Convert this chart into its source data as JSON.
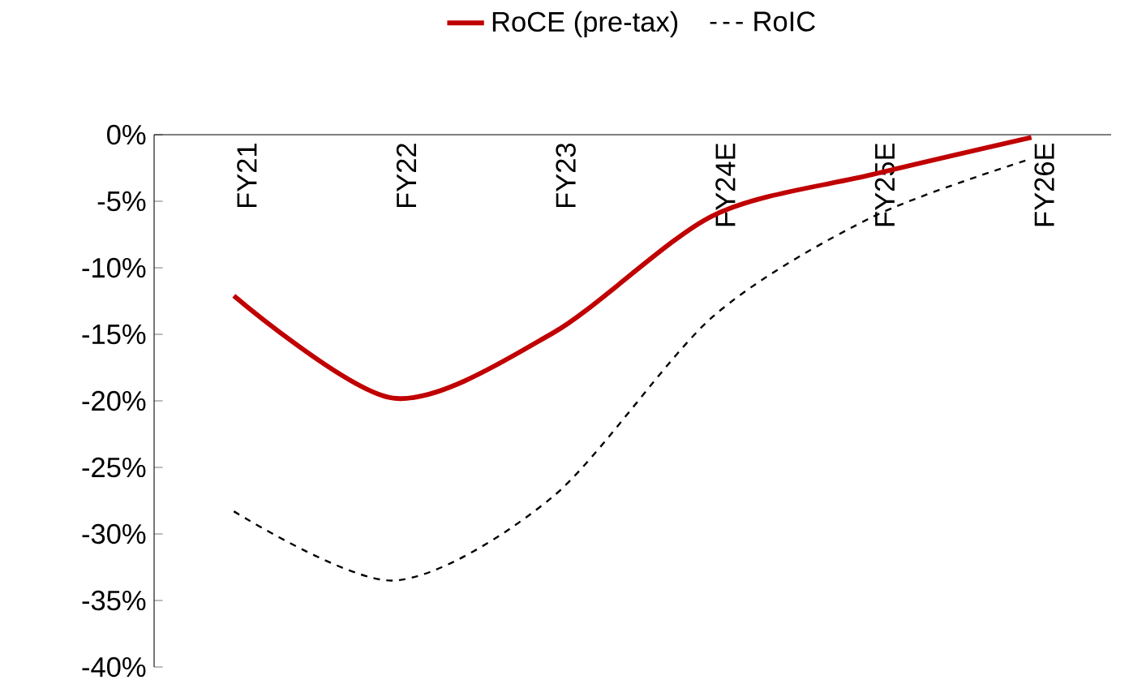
{
  "chart_data": {
    "type": "line",
    "categories": [
      "FY21",
      "FY22",
      "FY23",
      "FY24E",
      "FY25E",
      "FY26E"
    ],
    "series": [
      {
        "name": "RoCE (pre-tax)",
        "color": "#c00000",
        "line_style": "solid",
        "values": [
          -12.1,
          -19.8,
          -14.9,
          -6.1,
          -3.0,
          -0.2
        ]
      },
      {
        "name": "RoIC",
        "color": "#000000",
        "line_style": "dashed",
        "values": [
          -28.3,
          -33.5,
          -27.2,
          -13.7,
          -6.2,
          -1.8
        ]
      }
    ],
    "ylim": [
      -40,
      0
    ],
    "yticks": [
      {
        "value": -40,
        "label": "-40%"
      },
      {
        "value": -35,
        "label": "-35%"
      },
      {
        "value": -30,
        "label": "-30%"
      },
      {
        "value": -25,
        "label": "-25%"
      },
      {
        "value": -20,
        "label": "-20%"
      },
      {
        "value": -15,
        "label": "-15%"
      },
      {
        "value": -10,
        "label": "-10%"
      },
      {
        "value": -5,
        "label": "-5%"
      },
      {
        "value": 0,
        "label": "0%"
      }
    ],
    "legend": "top"
  }
}
